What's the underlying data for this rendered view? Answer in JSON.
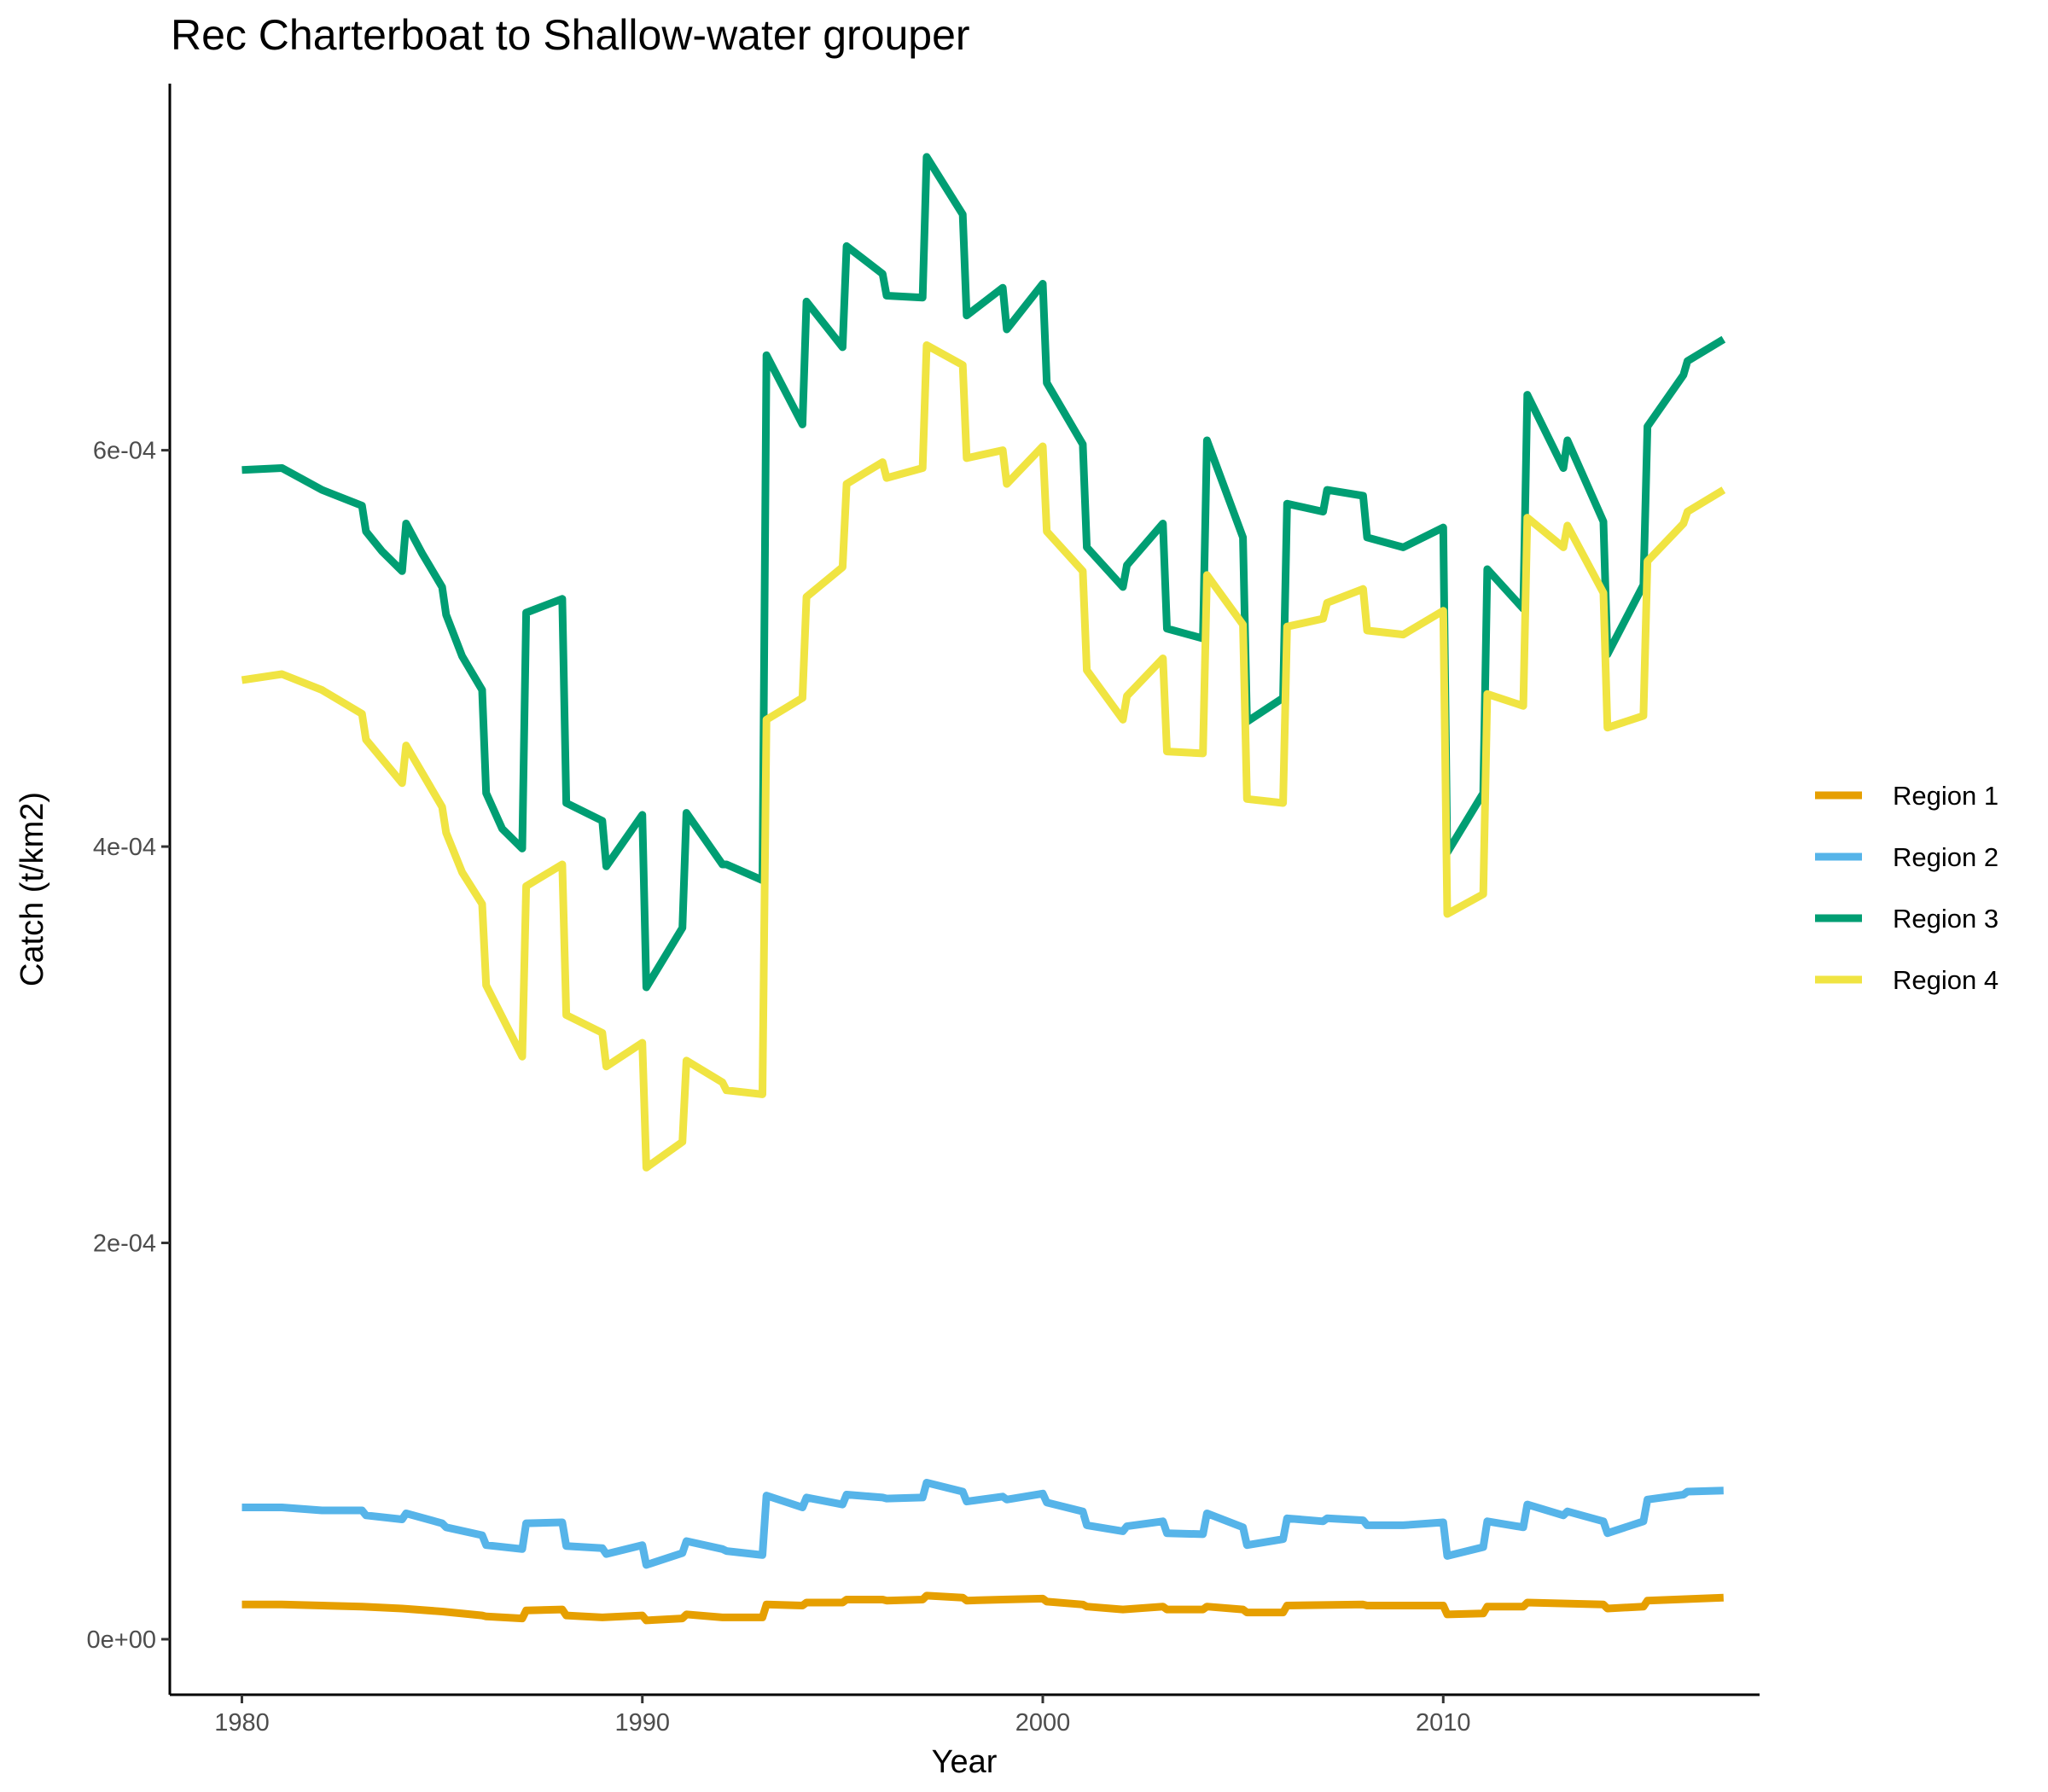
{
  "chart_data": {
    "type": "line",
    "title": "Rec Charterboat to Shallow-water grouper",
    "xlabel": "Year",
    "ylabel": "Catch (t/km2)",
    "xlim": [
      1978.2,
      2017.9
    ],
    "ylim": [
      -2.8e-05,
      0.000785
    ],
    "x_ticks": [
      1980,
      1990,
      2000,
      2010
    ],
    "x_tick_labels": [
      "1980",
      "1990",
      "2000",
      "2010"
    ],
    "y_ticks": [
      0,
      0.0002,
      0.0004,
      0.0006
    ],
    "y_tick_labels": [
      "0e+00",
      "2e-04",
      "4e-04",
      "6e-04"
    ],
    "grid": false,
    "legend_position": "right",
    "series": [
      {
        "name": "Region 1",
        "color": "#E69F00",
        "points": [
          [
            1980.0,
            1.75e-05
          ],
          [
            1981.0,
            1.75e-05
          ],
          [
            1983.0,
            1.65e-05
          ],
          [
            1984.0,
            1.55e-05
          ],
          [
            1985.0,
            1.4e-05
          ],
          [
            1986.0,
            1.2e-05
          ],
          [
            1986.1,
            1.15e-05
          ],
          [
            1987.0,
            1.05e-05
          ],
          [
            1987.1,
            1.45e-05
          ],
          [
            1988.0,
            1.5e-05
          ],
          [
            1988.1,
            1.2e-05
          ],
          [
            1989.0,
            1.1e-05
          ],
          [
            1990.0,
            1.2e-05
          ],
          [
            1990.1,
            9.5e-06
          ],
          [
            1991.0,
            1.05e-05
          ],
          [
            1991.1,
            1.25e-05
          ],
          [
            1992.0,
            1.1e-05
          ],
          [
            1993.0,
            1.1e-05
          ],
          [
            1993.1,
            1.75e-05
          ],
          [
            1994.0,
            1.7e-05
          ],
          [
            1994.1,
            1.85e-05
          ],
          [
            1995.0,
            1.85e-05
          ],
          [
            1995.1,
            2e-05
          ],
          [
            1996.0,
            2e-05
          ],
          [
            1996.1,
            1.95e-05
          ],
          [
            1997.0,
            2e-05
          ],
          [
            1997.1,
            2.2e-05
          ],
          [
            1998.0,
            2.1e-05
          ],
          [
            1998.1,
            1.95e-05
          ],
          [
            1999.0,
            2e-05
          ],
          [
            2000.0,
            2.05e-05
          ],
          [
            2000.1,
            1.9e-05
          ],
          [
            2001.0,
            1.75e-05
          ],
          [
            2001.1,
            1.65e-05
          ],
          [
            2002.0,
            1.5e-05
          ],
          [
            2003.0,
            1.65e-05
          ],
          [
            2003.1,
            1.5e-05
          ],
          [
            2004.0,
            1.5e-05
          ],
          [
            2004.1,
            1.65e-05
          ],
          [
            2005.0,
            1.5e-05
          ],
          [
            2005.1,
            1.35e-05
          ],
          [
            2006.0,
            1.35e-05
          ],
          [
            2006.1,
            1.7e-05
          ],
          [
            2008.0,
            1.75e-05
          ],
          [
            2008.1,
            1.7e-05
          ],
          [
            2010.0,
            1.7e-05
          ],
          [
            2010.1,
            1.25e-05
          ],
          [
            2011.0,
            1.3e-05
          ],
          [
            2011.1,
            1.65e-05
          ],
          [
            2012.0,
            1.65e-05
          ],
          [
            2012.1,
            1.85e-05
          ],
          [
            2014.0,
            1.75e-05
          ],
          [
            2014.1,
            1.55e-05
          ],
          [
            2015.0,
            1.65e-05
          ],
          [
            2015.1,
            1.95e-05
          ],
          [
            2017.0,
            2.1e-05
          ]
        ]
      },
      {
        "name": "Region 2",
        "color": "#56B4E9",
        "points": [
          [
            1980.0,
            6.65e-05
          ],
          [
            1981.0,
            6.65e-05
          ],
          [
            1982.0,
            6.5e-05
          ],
          [
            1983.0,
            6.5e-05
          ],
          [
            1983.1,
            6.25e-05
          ],
          [
            1984.0,
            6.05e-05
          ],
          [
            1984.1,
            6.35e-05
          ],
          [
            1985.0,
            5.85e-05
          ],
          [
            1985.1,
            5.65e-05
          ],
          [
            1986.0,
            5.25e-05
          ],
          [
            1986.1,
            4.75e-05
          ],
          [
            1987.0,
            4.55e-05
          ],
          [
            1987.1,
            5.85e-05
          ],
          [
            1988.0,
            5.9e-05
          ],
          [
            1988.1,
            4.7e-05
          ],
          [
            1989.0,
            4.6e-05
          ],
          [
            1989.1,
            4.3e-05
          ],
          [
            1990.0,
            4.75e-05
          ],
          [
            1990.1,
            3.75e-05
          ],
          [
            1991.0,
            4.35e-05
          ],
          [
            1991.1,
            4.95e-05
          ],
          [
            1992.0,
            4.55e-05
          ],
          [
            1992.1,
            4.45e-05
          ],
          [
            1993.0,
            4.25e-05
          ],
          [
            1993.1,
            7.25e-05
          ],
          [
            1994.0,
            6.65e-05
          ],
          [
            1994.1,
            7.15e-05
          ],
          [
            1995.0,
            6.8e-05
          ],
          [
            1995.1,
            7.3e-05
          ],
          [
            1996.0,
            7.15e-05
          ],
          [
            1996.1,
            7.1e-05
          ],
          [
            1997.0,
            7.15e-05
          ],
          [
            1997.1,
            7.9e-05
          ],
          [
            1998.0,
            7.45e-05
          ],
          [
            1998.1,
            6.95e-05
          ],
          [
            1999.0,
            7.2e-05
          ],
          [
            1999.1,
            7.05e-05
          ],
          [
            2000.0,
            7.35e-05
          ],
          [
            2000.1,
            6.9e-05
          ],
          [
            2001.0,
            6.45e-05
          ],
          [
            2001.1,
            5.75e-05
          ],
          [
            2002.0,
            5.45e-05
          ],
          [
            2002.1,
            5.7e-05
          ],
          [
            2003.0,
            5.95e-05
          ],
          [
            2003.1,
            5.35e-05
          ],
          [
            2004.0,
            5.3e-05
          ],
          [
            2004.1,
            6.35e-05
          ],
          [
            2005.0,
            5.65e-05
          ],
          [
            2005.1,
            4.75e-05
          ],
          [
            2006.0,
            5.05e-05
          ],
          [
            2006.1,
            6.1e-05
          ],
          [
            2007.0,
            5.95e-05
          ],
          [
            2007.1,
            6.1e-05
          ],
          [
            2008.0,
            6e-05
          ],
          [
            2008.1,
            5.75e-05
          ],
          [
            2009.0,
            5.75e-05
          ],
          [
            2010.0,
            5.9e-05
          ],
          [
            2010.1,
            4.2e-05
          ],
          [
            2011.0,
            4.65e-05
          ],
          [
            2011.1,
            5.95e-05
          ],
          [
            2012.0,
            5.65e-05
          ],
          [
            2012.1,
            6.8e-05
          ],
          [
            2013.0,
            6.25e-05
          ],
          [
            2013.1,
            6.45e-05
          ],
          [
            2014.0,
            5.95e-05
          ],
          [
            2014.1,
            5.35e-05
          ],
          [
            2015.0,
            5.95e-05
          ],
          [
            2015.1,
            7.05e-05
          ],
          [
            2016.0,
            7.3e-05
          ],
          [
            2016.1,
            7.45e-05
          ],
          [
            2017.0,
            7.5e-05
          ]
        ]
      },
      {
        "name": "Region 3",
        "color": "#009E73",
        "points": [
          [
            1980.0,
            0.00059
          ],
          [
            1981.0,
            0.000591
          ],
          [
            1982.0,
            0.00058
          ],
          [
            1983.0,
            0.000572
          ],
          [
            1983.1,
            0.000559
          ],
          [
            1983.5,
            0.000549
          ],
          [
            1984.0,
            0.000539
          ],
          [
            1984.1,
            0.000563
          ],
          [
            1984.5,
            0.000548
          ],
          [
            1985.0,
            0.000531
          ],
          [
            1985.1,
            0.000517
          ],
          [
            1985.5,
            0.000496
          ],
          [
            1986.0,
            0.000479
          ],
          [
            1986.1,
            0.000427
          ],
          [
            1986.5,
            0.000409
          ],
          [
            1987.0,
            0.000399
          ],
          [
            1987.1,
            0.000518
          ],
          [
            1988.0,
            0.000525
          ],
          [
            1988.1,
            0.000422
          ],
          [
            1989.0,
            0.000413
          ],
          [
            1989.1,
            0.00039
          ],
          [
            1990.0,
            0.000416
          ],
          [
            1990.1,
            0.000329
          ],
          [
            1991.0,
            0.000359
          ],
          [
            1991.1,
            0.000417
          ],
          [
            1992.0,
            0.000391
          ],
          [
            1992.1,
            0.000391
          ],
          [
            1993.0,
            0.000383
          ],
          [
            1993.1,
            0.000648
          ],
          [
            1994.0,
            0.000613
          ],
          [
            1994.1,
            0.000675
          ],
          [
            1995.0,
            0.000652
          ],
          [
            1995.1,
            0.000703
          ],
          [
            1996.0,
            0.000689
          ],
          [
            1996.1,
            0.000678
          ],
          [
            1997.0,
            0.000677
          ],
          [
            1997.1,
            0.000748
          ],
          [
            1998.0,
            0.000719
          ],
          [
            1998.1,
            0.000668
          ],
          [
            1999.0,
            0.000682
          ],
          [
            1999.1,
            0.000661
          ],
          [
            2000.0,
            0.000684
          ],
          [
            2000.1,
            0.000634
          ],
          [
            2001.0,
            0.000603
          ],
          [
            2001.1,
            0.000551
          ],
          [
            2002.0,
            0.000531
          ],
          [
            2002.1,
            0.000542
          ],
          [
            2003.0,
            0.000563
          ],
          [
            2003.1,
            0.00051
          ],
          [
            2004.0,
            0.000505
          ],
          [
            2004.1,
            0.000605
          ],
          [
            2005.0,
            0.000556
          ],
          [
            2005.1,
            0.000463
          ],
          [
            2006.0,
            0.000475
          ],
          [
            2006.1,
            0.000573
          ],
          [
            2007.0,
            0.000569
          ],
          [
            2007.1,
            0.00058
          ],
          [
            2008.0,
            0.000577
          ],
          [
            2008.1,
            0.000556
          ],
          [
            2009.0,
            0.000551
          ],
          [
            2010.0,
            0.000561
          ],
          [
            2010.1,
            0.000397
          ],
          [
            2011.0,
            0.000427
          ],
          [
            2011.1,
            0.00054
          ],
          [
            2012.0,
            0.00052
          ],
          [
            2012.1,
            0.000628
          ],
          [
            2013.0,
            0.000591
          ],
          [
            2013.1,
            0.000605
          ],
          [
            2014.0,
            0.000564
          ],
          [
            2014.1,
            0.000497
          ],
          [
            2015.0,
            0.000532
          ],
          [
            2015.1,
            0.000612
          ],
          [
            2016.0,
            0.000638
          ],
          [
            2016.1,
            0.000645
          ],
          [
            2017.0,
            0.000656
          ]
        ]
      },
      {
        "name": "Region 4",
        "color": "#F0E442",
        "points": [
          [
            1980.0,
            0.000484
          ],
          [
            1981.0,
            0.000487
          ],
          [
            1982.0,
            0.000479
          ],
          [
            1983.0,
            0.000467
          ],
          [
            1983.1,
            0.000454
          ],
          [
            1984.0,
            0.000432
          ],
          [
            1984.1,
            0.000451
          ],
          [
            1985.0,
            0.00042
          ],
          [
            1985.1,
            0.000407
          ],
          [
            1985.5,
            0.000387
          ],
          [
            1986.0,
            0.000371
          ],
          [
            1986.1,
            0.00033
          ],
          [
            1987.0,
            0.000294
          ],
          [
            1987.1,
            0.00038
          ],
          [
            1988.0,
            0.000391
          ],
          [
            1988.1,
            0.000315
          ],
          [
            1989.0,
            0.000306
          ],
          [
            1989.1,
            0.000289
          ],
          [
            1990.0,
            0.000301
          ],
          [
            1990.1,
            0.000238
          ],
          [
            1991.0,
            0.000251
          ],
          [
            1991.1,
            0.000292
          ],
          [
            1992.0,
            0.000281
          ],
          [
            1992.1,
            0.000277
          ],
          [
            1993.0,
            0.000275
          ],
          [
            1993.1,
            0.000464
          ],
          [
            1994.0,
            0.000475
          ],
          [
            1994.1,
            0.000526
          ],
          [
            1995.0,
            0.000541
          ],
          [
            1995.1,
            0.000583
          ],
          [
            1996.0,
            0.000594
          ],
          [
            1996.1,
            0.000586
          ],
          [
            1997.0,
            0.000591
          ],
          [
            1997.1,
            0.000653
          ],
          [
            1998.0,
            0.000643
          ],
          [
            1998.1,
            0.000596
          ],
          [
            1999.0,
            0.0006
          ],
          [
            1999.1,
            0.000583
          ],
          [
            2000.0,
            0.000602
          ],
          [
            2000.1,
            0.000559
          ],
          [
            2001.0,
            0.000539
          ],
          [
            2001.1,
            0.000489
          ],
          [
            2002.0,
            0.000464
          ],
          [
            2002.1,
            0.000476
          ],
          [
            2003.0,
            0.000495
          ],
          [
            2003.1,
            0.000448
          ],
          [
            2004.0,
            0.000447
          ],
          [
            2004.1,
            0.000537
          ],
          [
            2005.0,
            0.000512
          ],
          [
            2005.1,
            0.000424
          ],
          [
            2006.0,
            0.000422
          ],
          [
            2006.1,
            0.000511
          ],
          [
            2007.0,
            0.000515
          ],
          [
            2007.1,
            0.000523
          ],
          [
            2008.0,
            0.00053
          ],
          [
            2008.1,
            0.000509
          ],
          [
            2009.0,
            0.000507
          ],
          [
            2010.0,
            0.000519
          ],
          [
            2010.1,
            0.000366
          ],
          [
            2011.0,
            0.000376
          ],
          [
            2011.1,
            0.000477
          ],
          [
            2012.0,
            0.000471
          ],
          [
            2012.1,
            0.000566
          ],
          [
            2013.0,
            0.000551
          ],
          [
            2013.1,
            0.000562
          ],
          [
            2014.0,
            0.000528
          ],
          [
            2014.1,
            0.00046
          ],
          [
            2015.0,
            0.000466
          ],
          [
            2015.1,
            0.000544
          ],
          [
            2016.0,
            0.000563
          ],
          [
            2016.1,
            0.000569
          ],
          [
            2017.0,
            0.00058
          ]
        ]
      }
    ]
  }
}
